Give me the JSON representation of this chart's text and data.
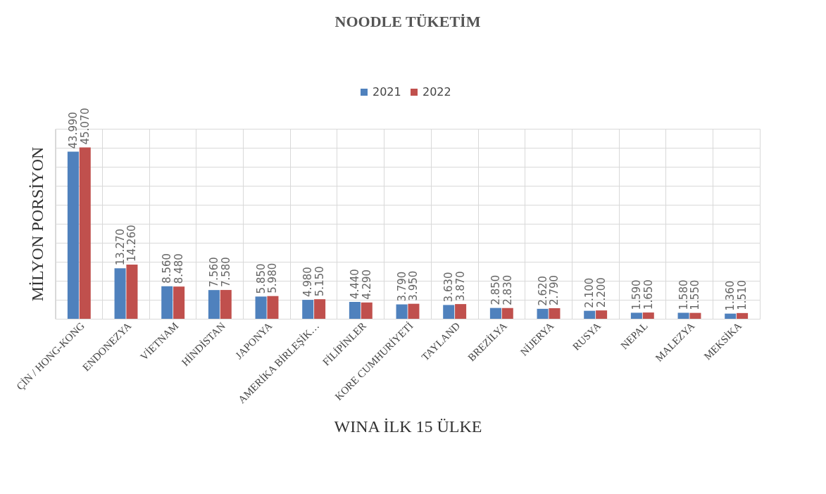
{
  "chart_data": {
    "type": "bar",
    "title": "NOODLE TÜKETİM",
    "xlabel": "WINA İLK 15 ÜLKE",
    "ylabel": "MİLYON PORSİYON",
    "categories": [
      "ÇİN / HONG-KONG",
      "ENDONEZYA",
      "VİETNAM",
      "HİNDİSTAN",
      "JAPONYA",
      "AMERİKA BİRLEŞİK…",
      "FİLİPİNLER",
      "KORE CUMHURİYETİ",
      "TAYLAND",
      "BREZİLYA",
      "NİJERYA",
      "RUSYA",
      "NEPAL",
      "MALEZYA",
      "MEKSİKA"
    ],
    "series": [
      {
        "name": "2021",
        "color": "#4f81bd",
        "values": [
          43990,
          13270,
          8560,
          7560,
          5850,
          4980,
          4440,
          3790,
          3630,
          2850,
          2620,
          2100,
          1590,
          1580,
          1360
        ],
        "value_labels": [
          "43.990",
          "13.270",
          "8.560",
          "7.560",
          "5.850",
          "4.980",
          "4.440",
          "3.790",
          "3.630",
          "2.850",
          "2.620",
          "2.100",
          "1.590",
          "1.580",
          "1.360"
        ]
      },
      {
        "name": "2022",
        "color": "#c0504d",
        "values": [
          45070,
          14260,
          8480,
          7580,
          5980,
          5150,
          4290,
          3950,
          3870,
          2830,
          2790,
          2200,
          1650,
          1550,
          1510
        ],
        "value_labels": [
          "45.070",
          "14.260",
          "8.480",
          "7.580",
          "5.980",
          "5.150",
          "4.290",
          "3.950",
          "3.870",
          "2.830",
          "2.790",
          "2.200",
          "1.650",
          "1.550",
          "1.510"
        ]
      }
    ],
    "grid": true,
    "legend": "top",
    "tick_labels": "x"
  }
}
